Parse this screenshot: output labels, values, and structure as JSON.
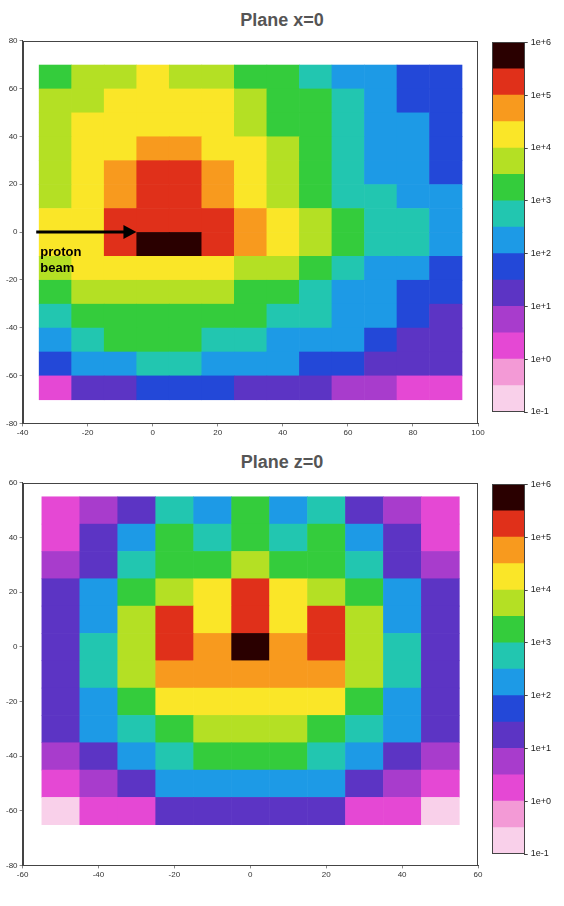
{
  "chart_data": [
    {
      "type": "heatmap",
      "title": "Plane x=0",
      "log": true,
      "grid": false,
      "xlim": [
        -40,
        100
      ],
      "xticks": [
        -40,
        -20,
        0,
        20,
        40,
        60,
        80,
        100
      ],
      "ylim": [
        -80,
        80
      ],
      "yticks": [
        -80,
        -60,
        -40,
        -20,
        0,
        20,
        40,
        60,
        80
      ],
      "annotations": [
        {
          "text": "proton beam"
        }
      ],
      "cells": {
        "x_edges": [
          -35,
          -25,
          -15,
          -5,
          5,
          15,
          25,
          35,
          45,
          55,
          65,
          75,
          85,
          95
        ],
        "y_edges": [
          70,
          60,
          50,
          40,
          30,
          20,
          10,
          0,
          -10,
          -20,
          -30,
          -40,
          -50,
          -60,
          -70
        ],
        "values": [
          [
            3000,
            5000,
            8000,
            10000,
            8000,
            6000,
            3000,
            1500,
            800,
            300,
            100,
            60,
            40
          ],
          [
            4000,
            8000,
            15000,
            20000,
            15000,
            10000,
            5000,
            2000,
            1000,
            400,
            150,
            80,
            50
          ],
          [
            5000,
            10000,
            20000,
            30000,
            25000,
            15000,
            8000,
            3000,
            1200,
            500,
            200,
            100,
            60
          ],
          [
            6000,
            12000,
            30000,
            60000,
            50000,
            25000,
            10000,
            4000,
            1500,
            600,
            250,
            120,
            70
          ],
          [
            7000,
            15000,
            40000,
            200000,
            200000,
            40000,
            12000,
            5000,
            2000,
            700,
            300,
            150,
            80
          ],
          [
            8000,
            20000,
            50000,
            150000,
            150000,
            50000,
            15000,
            6000,
            2500,
            800,
            400,
            200,
            100
          ],
          [
            10000,
            25000,
            100000,
            300000,
            300000,
            150000,
            50000,
            12000,
            4000,
            1500,
            700,
            400,
            300
          ],
          [
            10000,
            25000,
            150000,
            1000000,
            500000,
            200000,
            60000,
            15000,
            5000,
            2000,
            800,
            500,
            300
          ],
          [
            5000,
            10000,
            20000,
            30000,
            25000,
            15000,
            8000,
            4000,
            2000,
            800,
            300,
            150,
            80
          ],
          [
            2000,
            4000,
            6000,
            8000,
            7000,
            5000,
            3000,
            1500,
            800,
            300,
            150,
            80,
            50
          ],
          [
            800,
            1500,
            2500,
            3000,
            3000,
            2000,
            1200,
            700,
            400,
            200,
            100,
            50,
            30
          ],
          [
            300,
            600,
            1000,
            1200,
            1200,
            800,
            500,
            300,
            200,
            100,
            60,
            30,
            20
          ],
          [
            50,
            150,
            300,
            400,
            400,
            300,
            200,
            100,
            60,
            40,
            25,
            15,
            10
          ],
          [
            1,
            10,
            30,
            60,
            50,
            40,
            30,
            20,
            10,
            8,
            5,
            3,
            2
          ]
        ]
      },
      "colorbar": {
        "range": [
          0.1,
          1000000
        ],
        "ticks": [
          {
            "value": 1000000,
            "label": "1e+6"
          },
          {
            "value": 100000,
            "label": "1e+5"
          },
          {
            "value": 10000,
            "label": "1e+4"
          },
          {
            "value": 1000,
            "label": "1e+3"
          },
          {
            "value": 100,
            "label": "1e+2"
          },
          {
            "value": 10,
            "label": "1e+1"
          },
          {
            "value": 1,
            "label": "1e+0"
          },
          {
            "value": 0.1,
            "label": "1e-1"
          }
        ],
        "colors": [
          "#f9d0ea",
          "#f39ad6",
          "#e548d4",
          "#a83ccc",
          "#5c34c4",
          "#2348d8",
          "#1d9ae6",
          "#22c6b0",
          "#34cc3c",
          "#b4e024",
          "#fae628",
          "#f89a1e",
          "#e0301a",
          "#2a0000"
        ]
      }
    },
    {
      "type": "heatmap",
      "title": "Plane z=0",
      "log": true,
      "grid": false,
      "xlim": [
        -60,
        60
      ],
      "xticks": [
        -60,
        -40,
        -20,
        0,
        20,
        40,
        60
      ],
      "ylim": [
        -80,
        60
      ],
      "yticks": [
        -80,
        -60,
        -40,
        -20,
        0,
        20,
        40,
        60
      ],
      "cells": {
        "x_edges": [
          -55,
          -45,
          -35,
          -25,
          -15,
          -5,
          5,
          15,
          25,
          35,
          45,
          55
        ],
        "y_edges": [
          55,
          45,
          35,
          25,
          15,
          5,
          -5,
          -15,
          -25,
          -35,
          -45,
          -55,
          -65
        ],
        "values": [
          [
            1,
            5,
            30,
            800,
            300,
            1000,
            300,
            800,
            30,
            5,
            1
          ],
          [
            2,
            10,
            100,
            1500,
            800,
            2000,
            800,
            1500,
            100,
            10,
            2
          ],
          [
            5,
            30,
            500,
            3000,
            2000,
            8000,
            2000,
            3000,
            500,
            30,
            5
          ],
          [
            10,
            100,
            2000,
            8000,
            10000,
            200000,
            10000,
            8000,
            2000,
            100,
            10
          ],
          [
            20,
            300,
            5000,
            200000,
            30000,
            200000,
            30000,
            200000,
            5000,
            300,
            20
          ],
          [
            30,
            500,
            8000,
            200000,
            80000,
            1000000,
            80000,
            200000,
            8000,
            500,
            30
          ],
          [
            30,
            500,
            6000,
            50000,
            40000,
            60000,
            40000,
            50000,
            6000,
            500,
            30
          ],
          [
            20,
            300,
            3000,
            10000,
            15000,
            20000,
            15000,
            10000,
            3000,
            300,
            20
          ],
          [
            10,
            100,
            800,
            3000,
            5000,
            6000,
            5000,
            3000,
            800,
            100,
            10
          ],
          [
            5,
            30,
            200,
            600,
            1000,
            1200,
            1000,
            600,
            200,
            30,
            5
          ],
          [
            1,
            5,
            30,
            100,
            150,
            200,
            150,
            100,
            30,
            5,
            1
          ],
          [
            0.3,
            1,
            3,
            10,
            20,
            30,
            20,
            10,
            3,
            1,
            0.3
          ]
        ]
      },
      "colorbar": {
        "range": [
          0.1,
          1000000
        ],
        "ticks": [
          {
            "value": 1000000,
            "label": "1e+6"
          },
          {
            "value": 100000,
            "label": "1e+5"
          },
          {
            "value": 10000,
            "label": "1e+4"
          },
          {
            "value": 1000,
            "label": "1e+3"
          },
          {
            "value": 100,
            "label": "1e+2"
          },
          {
            "value": 10,
            "label": "1e+1"
          },
          {
            "value": 1,
            "label": "1e+0"
          },
          {
            "value": 0.1,
            "label": "1e-1"
          }
        ],
        "colors": [
          "#f9d0ea",
          "#f39ad6",
          "#e548d4",
          "#a83ccc",
          "#5c34c4",
          "#2348d8",
          "#1d9ae6",
          "#22c6b0",
          "#34cc3c",
          "#b4e024",
          "#fae628",
          "#f89a1e",
          "#e0301a",
          "#2a0000"
        ]
      }
    }
  ]
}
